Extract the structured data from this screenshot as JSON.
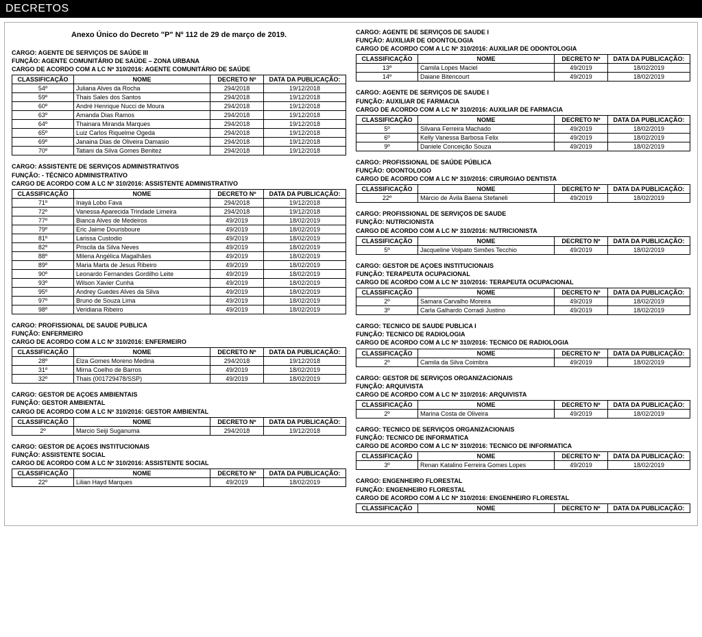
{
  "colors": {
    "banner_bg": "#000000",
    "banner_fg": "#ffffff",
    "page_border": "#aaaaaa",
    "table_border": "#000000",
    "text": "#000000"
  },
  "banner_title": "DECRETOS",
  "anexo_title": "Anexo Único do Decreto \"P\" Nº 112 de 29 de março de 2019.",
  "columns": [
    "CLASSIFICAÇÃO",
    "NOME",
    "DECRETO Nº",
    "DATA DA PUBLICAÇÃO:"
  ],
  "left": [
    {
      "cargo": "CARGO: AGENTE DE SERVIÇOS DE SAÚDE III",
      "funcao": "FUNÇÃO: AGENTE COMUNITÁRIO DE SAÚDE – ZONA URBANA",
      "cargo_lc": "CARGO DE ACORDO COM A LC Nº 310/2016: AGENTE COMUNITÁRIO DE SAÚDE",
      "rows": [
        [
          "54º",
          "Juliana Alves da Rocha",
          "294/2018",
          "19/12/2018"
        ],
        [
          "59º",
          "Thais Sales dos Santos",
          "294/2018",
          "19/12/2018"
        ],
        [
          "60º",
          "André Henrique Nucci de Moura",
          "294/2018",
          "19/12/2018"
        ],
        [
          "63º",
          "Amanda Dias Ramos",
          "294/2018",
          "19/12/2018"
        ],
        [
          "64º",
          "Thainara Miranda Marques",
          "294/2018",
          "19/12/2018"
        ],
        [
          "65º",
          "Luiz Carlos Riquelme Ogeda",
          "294/2018",
          "19/12/2018"
        ],
        [
          "69º",
          "Janaina Dias de Oliveira Damasio",
          "294/2018",
          "19/12/2018"
        ],
        [
          "70º",
          "Tatiani da Silva Gomes Benitez",
          "294/2018",
          "19/12/2018"
        ]
      ]
    },
    {
      "cargo": "CARGO: ASSISTENTE DE SERVIÇOS ADMINISTRATIVOS",
      "funcao": "FUNÇÃO: - TÉCNICO ADMINISTRATIVO",
      "cargo_lc": "CARGO DE ACORDO COM A LC Nº 310/2016: ASSISTENTE ADMINISTRATIVO",
      "rows": [
        [
          "71º",
          "Inayá Lobo Fava",
          "294/2018",
          "19/12/2018"
        ],
        [
          "72º",
          "Vanessa Aparecida Trindade Limeira",
          "294/2018",
          "19/12/2018"
        ],
        [
          "77º",
          "Bianca Alves de Medeiros",
          "49/2019",
          "18/02/2019"
        ],
        [
          "79º",
          "Eric Jaime Dourisboure",
          "49/2019",
          "18/02/2019"
        ],
        [
          "81º",
          "Larissa Custodio",
          "49/2019",
          "18/02/2019"
        ],
        [
          "82º",
          "Priscila da Silva Neves",
          "49/2019",
          "18/02/2019"
        ],
        [
          "88º",
          "Milena Angélica Magalhães",
          "49/2019",
          "18/02/2019"
        ],
        [
          "89º",
          "Maria Marta de Jesus Ribeiro",
          "49/2019",
          "18/02/2019"
        ],
        [
          "90º",
          "Leonardo Fernandes Gordilho Leite",
          "49/2019",
          "18/02/2019"
        ],
        [
          "93º",
          "Wilson Xavier Cunha",
          "49/2019",
          "18/02/2019"
        ],
        [
          "95º",
          "Andrey Guedes Alves da Silva",
          "49/2019",
          "18/02/2019"
        ],
        [
          "97º",
          "Bruno de Souza Lima",
          "49/2019",
          "18/02/2019"
        ],
        [
          "98º",
          "Veridiana Ribeiro",
          "49/2019",
          "18/02/2019"
        ]
      ]
    },
    {
      "cargo": "CARGO: PROFISSIONAL DE SAUDE PUBLICA",
      "funcao": "FUNÇÃO: ENFERMEIRO",
      "cargo_lc": "CARGO DE ACORDO COM A LC Nº 310/2016: ENFERMEIRO",
      "rows": [
        [
          "28º",
          "Elza Gomes Moreno Medina",
          "294/2018",
          "19/12/2018"
        ],
        [
          "31º",
          "Mirna Coelho de Barros",
          "49/2019",
          "18/02/2019"
        ],
        [
          "32º",
          "Thais (001729478/SSP)",
          "49/2019",
          "18/02/2019"
        ]
      ]
    },
    {
      "cargo": "CARGO: GESTOR DE AÇOES AMBIENTAIS",
      "funcao": "FUNÇÃO: GESTOR AMBIENTAL",
      "cargo_lc": "CARGO DE ACORDO COM A LC Nº 310/2016: GESTOR AMBIENTAL",
      "rows": [
        [
          "2º",
          "Marcio Seiji Suganuma",
          "294/2018",
          "19/12/2018"
        ]
      ]
    },
    {
      "cargo": "CARGO: GESTOR DE AÇOES INSTITUCIONAIS",
      "funcao": "FUNÇÃO: ASSISTENTE SOCIAL",
      "cargo_lc": "CARGO DE ACORDO COM A LC Nº 310/2016: ASSISTENTE SOCIAL",
      "rows": [
        [
          "22º",
          "Lilian Hayd Marques",
          "49/2019",
          "18/02/2019"
        ]
      ]
    }
  ],
  "right": [
    {
      "cargo": "CARGO: AGENTE DE SERVIÇOS DE SAUDE I",
      "funcao": "FUNÇÃO: AUXILIAR DE ODONTOLOGIA",
      "cargo_lc": "CARGO DE ACORDO COM A LC Nº 310/2016: AUXILIAR DE ODONTOLOGIA",
      "rows": [
        [
          "13º",
          "Camila Lopes Maciel",
          "49/2019",
          "18/02/2019"
        ],
        [
          "14º",
          "Daiane Bitencourt",
          "49/2019",
          "18/02/2019"
        ]
      ]
    },
    {
      "cargo": "CARGO: AGENTE DE SERVIÇOS DE SAUDE I",
      "funcao": "FUNÇÃO: AUXILIAR DE FARMACIA",
      "cargo_lc": "CARGO DE ACORDO COM A LC Nº 310/2016: AUXILIAR DE FARMACIA",
      "rows": [
        [
          "5º",
          "Silvana Ferreira Machado",
          "49/2019",
          "18/02/2019"
        ],
        [
          "6º",
          "Kelly Vanessa Barbosa Felix",
          "49/2019",
          "18/02/2019"
        ],
        [
          "9º",
          "Daniele Conceição Souza",
          "49/2019",
          "18/02/2019"
        ]
      ]
    },
    {
      "cargo": "CARGO: PROFISSIONAL DE SAÚDE PÚBLICA",
      "funcao": "FUNÇÃO: ODONTOLOGO",
      "cargo_lc": "CARGO DE ACORDO COM A LC Nº 310/2016: CIRURGIAO DENTISTA",
      "rows": [
        [
          "22º",
          "Márcio de Ávila Baena Stefaneli",
          "49/2019",
          "18/02/2019"
        ]
      ]
    },
    {
      "cargo": "CARGO: PROFISSIONAL DE SERVIÇOS DE SAUDE",
      "funcao": "FUNÇÃO: NUTRICIONISTA",
      "cargo_lc": "CARGO DE ACORDO COM A LC Nº 310/2016: NUTRICIONISTA",
      "rows": [
        [
          "5º",
          "Jacqueline Volpato Simões Tecchio",
          "49/2019",
          "18/02/2019"
        ]
      ]
    },
    {
      "cargo": "CARGO: GESTOR DE AÇOES INSTITUCIONAIS",
      "funcao": "FUNÇÃO: TERAPEUTA OCUPACIONAL",
      "cargo_lc": "CARGO DE ACORDO COM A LC Nº 310/2016: TERAPEUTA OCUPACIONAL",
      "rows": [
        [
          "2º",
          "Samara Carvalho Moreira",
          "49/2019",
          "18/02/2019"
        ],
        [
          "3º",
          "Carla Galhardo Corradi Justino",
          "49/2019",
          "18/02/2019"
        ]
      ]
    },
    {
      "cargo": "CARGO: TECNICO DE SAUDE PUBLICA I",
      "funcao": "FUNÇÃO: TECNICO DE RADIOLOGIA",
      "cargo_lc": "CARGO DE ACORDO COM A LC Nº 310/2016: TECNICO DE RADIOLOGIA",
      "rows": [
        [
          "2º",
          "Camila da Silva Coimbra",
          "49/2019",
          "18/02/2019"
        ]
      ]
    },
    {
      "cargo": "CARGO: GESTOR DE SERVIÇOS ORGANIZACIONAIS",
      "funcao": "FUNÇÃO: ARQUIVISTA",
      "cargo_lc": "CARGO DE ACORDO COM A LC Nº 310/2016: ARQUIVISTA",
      "rows": [
        [
          "2º",
          "Marina Costa de Oliveira",
          "49/2019",
          "18/02/2019"
        ]
      ]
    },
    {
      "cargo": "CARGO: TECNICO DE SERVIÇOS ORGANIZACIONAIS",
      "funcao": "FUNÇÃO: TECNICO DE INFORMATICA",
      "cargo_lc": "CARGO DE ACORDO COM A LC Nº 310/2016: TECNICO DE INFORMATICA",
      "rows": [
        [
          "3º",
          "Renan Katalino Ferreira Gomes Lopes",
          "49/2019",
          "18/02/2019"
        ]
      ]
    },
    {
      "cargo": "CARGO: ENGENHEIRO FLORESTAL",
      "funcao": "FUNÇÃO: ENGENHEIRO FLORESTAL",
      "cargo_lc": "CARGO DE ACORDO COM A LC Nº 310/2016: ENGENHEIRO FLORESTAL",
      "header_only": true,
      "rows": []
    }
  ]
}
